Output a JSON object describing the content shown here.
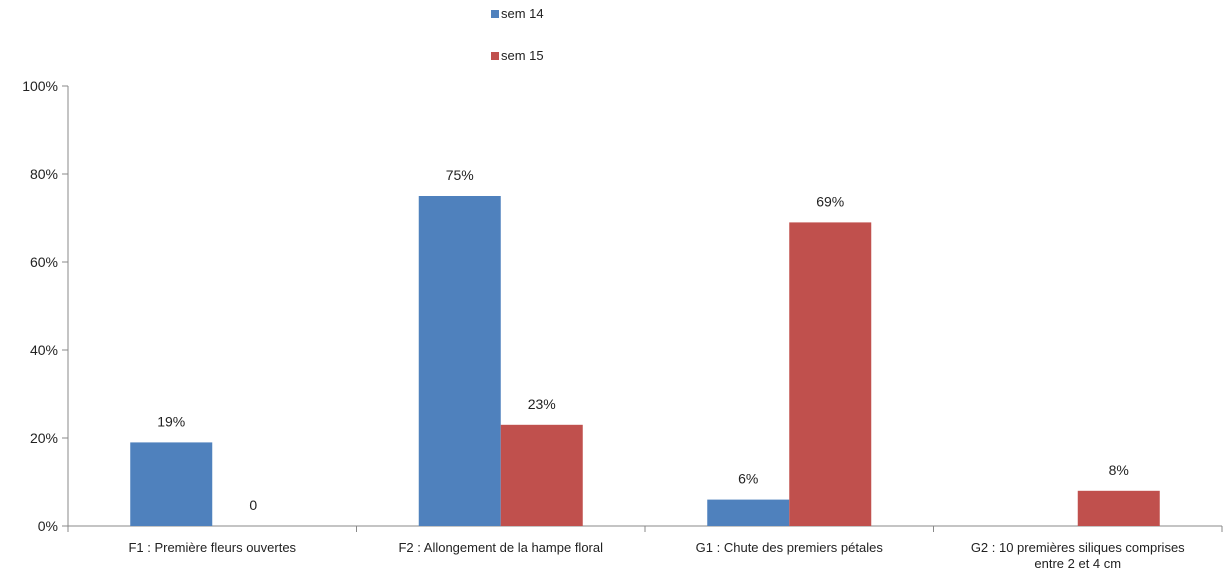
{
  "chart_data": {
    "type": "bar",
    "categories": [
      [
        "F1 : Première fleurs ouvertes"
      ],
      [
        "F2 : Allongement de la hampe floral"
      ],
      [
        "G1 : Chute des premiers pétales"
      ],
      [
        "G2 : 10 premières siliques comprises",
        "entre 2 et 4 cm"
      ]
    ],
    "series": [
      {
        "name": "sem 14",
        "color": "#4f81bd",
        "values": [
          19,
          75,
          6,
          null
        ],
        "labels": [
          "19%",
          "75%",
          "6%",
          ""
        ]
      },
      {
        "name": "sem 15",
        "color": "#c0504d",
        "values": [
          0,
          23,
          69,
          8
        ],
        "labels": [
          "0",
          "23%",
          "69%",
          "8%"
        ]
      }
    ],
    "yticks": [
      "0%",
      "20%",
      "40%",
      "60%",
      "80%",
      "100%"
    ],
    "ylim": [
      0,
      100
    ],
    "xlabel": "",
    "ylabel": "",
    "title": "",
    "grid": false,
    "legend_position": "top-center"
  }
}
